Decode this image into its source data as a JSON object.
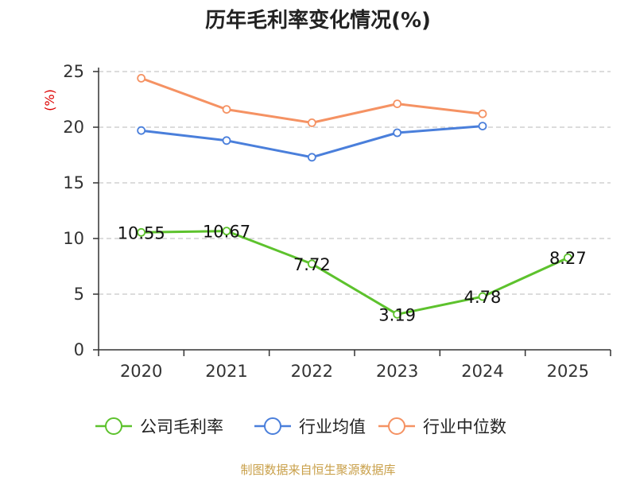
{
  "chart_data": {
    "type": "line",
    "title": "历年毛利率变化情况(%)",
    "ylabel": "(%)",
    "xlabel": "",
    "categories": [
      "2020",
      "2021",
      "2022",
      "2023",
      "2024",
      "2025"
    ],
    "ylim": [
      0,
      25
    ],
    "yticks": [
      0,
      5,
      10,
      15,
      20,
      25
    ],
    "grid": "horizontal-dashed",
    "legend_position": "bottom",
    "series": [
      {
        "name": "公司毛利率",
        "color": "#5dc22d",
        "values": [
          10.55,
          10.67,
          7.72,
          3.19,
          4.78,
          8.27
        ],
        "show_labels": true
      },
      {
        "name": "行业均值",
        "color": "#4a7fdb",
        "values": [
          19.7,
          18.8,
          17.3,
          19.5,
          20.1,
          null
        ],
        "show_labels": false
      },
      {
        "name": "行业中位数",
        "color": "#f59263",
        "values": [
          24.4,
          21.6,
          20.4,
          22.1,
          21.2,
          null
        ],
        "show_labels": false
      }
    ]
  },
  "colors": {
    "unit_label": "#dd0000",
    "source_label": "#c9a04a",
    "grid": "#c8c8c8",
    "axis": "#333333"
  },
  "source": "制图数据来自恒生聚源数据库"
}
